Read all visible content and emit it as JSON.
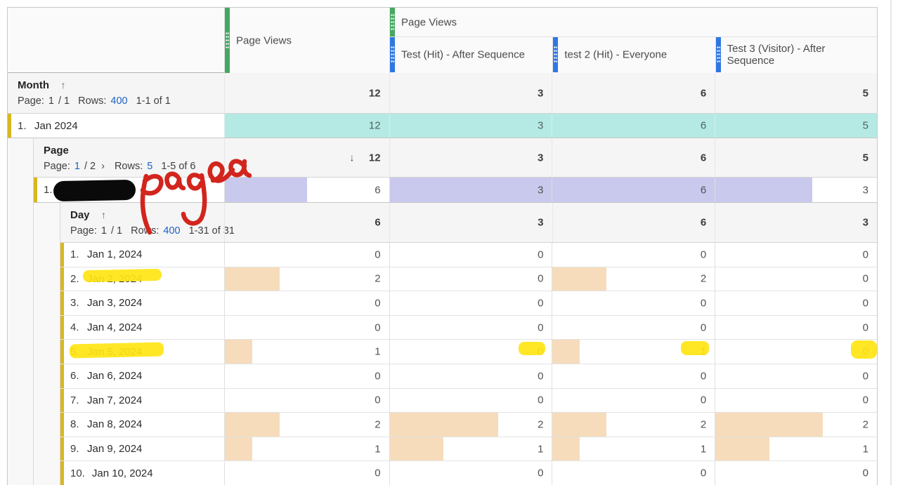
{
  "colors": {
    "metric_green": "#46a860",
    "segment_blue": "#2f78e3",
    "teal_row": "#b5eae4",
    "lavender_bar": "#c9c8ed",
    "peach_bar": "#f6dcbb",
    "row_marker_gold": "#d7b81f",
    "link_blue": "#1c62c2",
    "highlighter_yellow": "#ffe512",
    "annotation_red": "#d2251d",
    "redaction_black": "#0a0a0a"
  },
  "columns": {
    "metric": {
      "label": "Page Views"
    },
    "group": {
      "label": "Page Views",
      "segments": [
        {
          "label": "Test (Hit) - After Sequence"
        },
        {
          "label": "test 2 (Hit) - Everyone"
        },
        {
          "label": "Test 3 (Visitor) - After Sequence"
        }
      ]
    }
  },
  "month": {
    "title": "Month",
    "sort_arrow": "↑",
    "pageinfo": {
      "page_label": "Page:",
      "current": "1",
      "of": "/ 1",
      "rows_label": "Rows:",
      "rows": "400",
      "range": "1-1 of 1"
    },
    "totals": [
      "12",
      "3",
      "6",
      "5"
    ],
    "row": {
      "index": "1.",
      "label": "Jan 2024",
      "values": [
        "12",
        "3",
        "6",
        "5"
      ]
    }
  },
  "page": {
    "title": "Page",
    "sort_arrow": "↓",
    "pageinfo": {
      "page_label": "Page:",
      "current": "1",
      "of": "/ 2",
      "next": "›",
      "rows_label": "Rows:",
      "rows": "5",
      "range": "1-5 of 6"
    },
    "totals": [
      "12",
      "3",
      "6",
      "5"
    ],
    "row": {
      "index": "1.",
      "label": "",
      "values": [
        "6",
        "3",
        "6",
        "3"
      ],
      "bar_pct": [
        50,
        100,
        100,
        60
      ]
    }
  },
  "day": {
    "title": "Day",
    "sort_arrow": "↑",
    "pageinfo": {
      "page_label": "Page:",
      "current": "1",
      "of": "/ 1",
      "rows_label": "Rows:",
      "rows": "400",
      "range": "1-31 of 31"
    },
    "totals": [
      "6",
      "3",
      "6",
      "3"
    ],
    "rows": [
      {
        "index": "1.",
        "label": "Jan 1, 2024",
        "values": [
          "0",
          "0",
          "0",
          "0"
        ],
        "bar_pct": [
          0,
          0,
          0,
          0
        ]
      },
      {
        "index": "2.",
        "label": "Jan 2, 2024",
        "values": [
          "2",
          "0",
          "2",
          "0"
        ],
        "bar_pct": [
          33.3,
          0,
          33.3,
          0
        ]
      },
      {
        "index": "3.",
        "label": "Jan 3, 2024",
        "values": [
          "0",
          "0",
          "0",
          "0"
        ],
        "bar_pct": [
          0,
          0,
          0,
          0
        ]
      },
      {
        "index": "4.",
        "label": "Jan 4, 2024",
        "values": [
          "0",
          "0",
          "0",
          "0"
        ],
        "bar_pct": [
          0,
          0,
          0,
          0
        ]
      },
      {
        "index": "5.",
        "label": "Jan 5, 2024",
        "values": [
          "1",
          "0",
          "1",
          "0"
        ],
        "bar_pct": [
          16.7,
          0,
          16.7,
          0
        ]
      },
      {
        "index": "6.",
        "label": "Jan 6, 2024",
        "values": [
          "0",
          "0",
          "0",
          "0"
        ],
        "bar_pct": [
          0,
          0,
          0,
          0
        ]
      },
      {
        "index": "7.",
        "label": "Jan 7, 2024",
        "values": [
          "0",
          "0",
          "0",
          "0"
        ],
        "bar_pct": [
          0,
          0,
          0,
          0
        ]
      },
      {
        "index": "8.",
        "label": "Jan 8, 2024",
        "values": [
          "2",
          "2",
          "2",
          "2"
        ],
        "bar_pct": [
          33.3,
          66.7,
          33.3,
          66.7
        ]
      },
      {
        "index": "9.",
        "label": "Jan 9, 2024",
        "values": [
          "1",
          "1",
          "1",
          "1"
        ],
        "bar_pct": [
          16.7,
          33.3,
          16.7,
          33.3
        ]
      },
      {
        "index": "10.",
        "label": "Jan 10, 2024",
        "values": [
          "0",
          "0",
          "0",
          "0"
        ],
        "bar_pct": [
          0,
          0,
          0,
          0
        ]
      }
    ]
  },
  "annotations": {
    "handwriting_text": "page a",
    "highlighted_row_labels": [
      "Jan 2, 2024",
      "Jan 5, 2024"
    ],
    "highlighted_cells": [
      "Jan 5, 2024 - Test (Hit) - After Sequence",
      "Jan 5, 2024 - test 2 (Hit) - Everyone",
      "Jan 5, 2024 - Test 3 (Visitor) - After Sequence"
    ]
  }
}
